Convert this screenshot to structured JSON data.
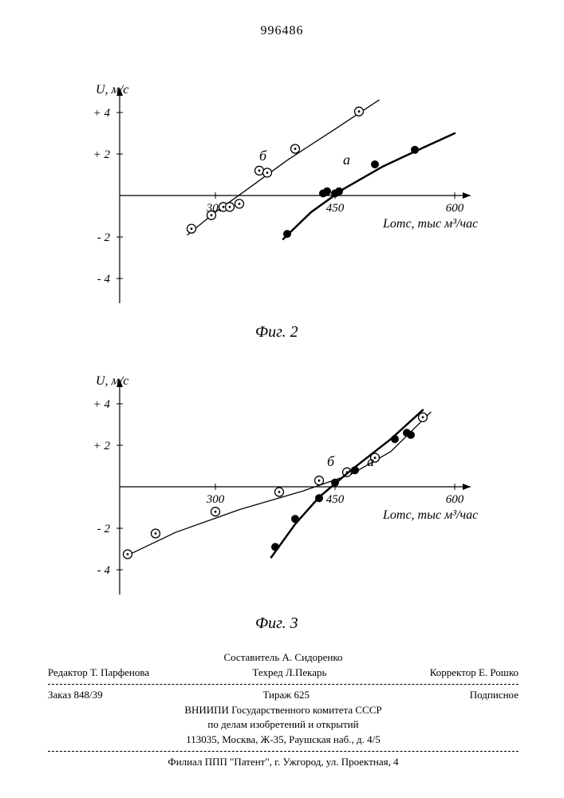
{
  "doc_number": "996486",
  "chart_common": {
    "y_label": "U, м/с",
    "x_label": "Lотс, тыс м³/час",
    "x_ticks": [
      300,
      450,
      600
    ],
    "y_ticks": [
      -4,
      -2,
      2,
      4
    ],
    "y_tick_labels": [
      "- 4",
      "- 2",
      "+ 2",
      "+ 4"
    ],
    "axis_color": "#000000",
    "bg_color": "#ffffff",
    "xlim": [
      180,
      620
    ],
    "ylim": [
      -5,
      5
    ]
  },
  "fig2": {
    "caption": "Фиг. 2",
    "series_a": {
      "label": "а",
      "label_x": 460,
      "label_y": 1.5,
      "marker": "filled-circle",
      "marker_color": "#000000",
      "line_width": 2.5,
      "points_x": [
        390,
        435,
        440,
        450,
        455,
        500,
        550
      ],
      "points_y": [
        -1.85,
        0.1,
        0.2,
        0.1,
        0.2,
        1.5,
        2.2
      ],
      "curve_x": [
        385,
        420,
        460,
        510,
        560,
        600
      ],
      "curve_y": [
        -2.1,
        -0.8,
        0.3,
        1.4,
        2.3,
        3.0
      ]
    },
    "series_b": {
      "label": "б",
      "label_x": 355,
      "label_y": 1.7,
      "marker": "open-dot-circle",
      "marker_stroke": "#000000",
      "marker_fill": "#ffffff",
      "line_width": 1.3,
      "points_x": [
        270,
        295,
        310,
        318,
        330,
        355,
        365,
        400,
        480
      ],
      "points_y": [
        -1.6,
        -0.95,
        -0.55,
        -0.55,
        -0.4,
        1.2,
        1.1,
        2.25,
        4.05
      ],
      "curve_x": [
        265,
        300,
        340,
        390,
        450,
        505
      ],
      "curve_y": [
        -1.9,
        -0.8,
        0.3,
        1.7,
        3.2,
        4.6
      ]
    }
  },
  "fig3": {
    "caption": "Фиг. 3",
    "series_a": {
      "label": "а",
      "label_x": 490,
      "label_y": 1.0,
      "marker": "filled-circle",
      "marker_color": "#000000",
      "line_width": 2.5,
      "points_x": [
        375,
        400,
        430,
        450,
        475,
        525,
        540,
        545
      ],
      "points_y": [
        -2.9,
        -1.55,
        -0.55,
        0.2,
        0.8,
        2.3,
        2.6,
        2.5
      ],
      "curve_x": [
        370,
        400,
        430,
        470,
        520,
        560
      ],
      "curve_y": [
        -3.4,
        -1.8,
        -0.5,
        0.8,
        2.3,
        3.7
      ]
    },
    "series_b": {
      "label": "б",
      "label_x": 440,
      "label_y": 1.0,
      "marker": "open-dot-circle",
      "marker_stroke": "#000000",
      "marker_fill": "#ffffff",
      "line_width": 1.3,
      "points_x": [
        190,
        225,
        300,
        380,
        430,
        465,
        500,
        560
      ],
      "points_y": [
        -3.25,
        -2.25,
        -1.2,
        -0.25,
        0.3,
        0.7,
        1.4,
        3.35
      ],
      "curve_x": [
        190,
        250,
        330,
        410,
        470,
        520,
        570
      ],
      "curve_y": [
        -3.3,
        -2.2,
        -1.1,
        -0.2,
        0.6,
        1.7,
        3.6
      ]
    }
  },
  "footer": {
    "compiler": "Составитель А. Сидоренко",
    "editor": "Редактор Т. Парфенова",
    "techred": "Техред Л.Пекарь",
    "corrector": "Корректор Е. Рошко",
    "order": "Заказ 848/39",
    "tirage": "Тираж 625",
    "subscription": "Подписное",
    "org1": "ВНИИПИ Государственного комитета СССР",
    "org2": "по делам изобретений и открытий",
    "address1": "113035, Москва, Ж-35, Раушская наб., д. 4/5",
    "branch": "Филиал ППП \"Патент\", г. Ужгород, ул. Проектная, 4"
  }
}
